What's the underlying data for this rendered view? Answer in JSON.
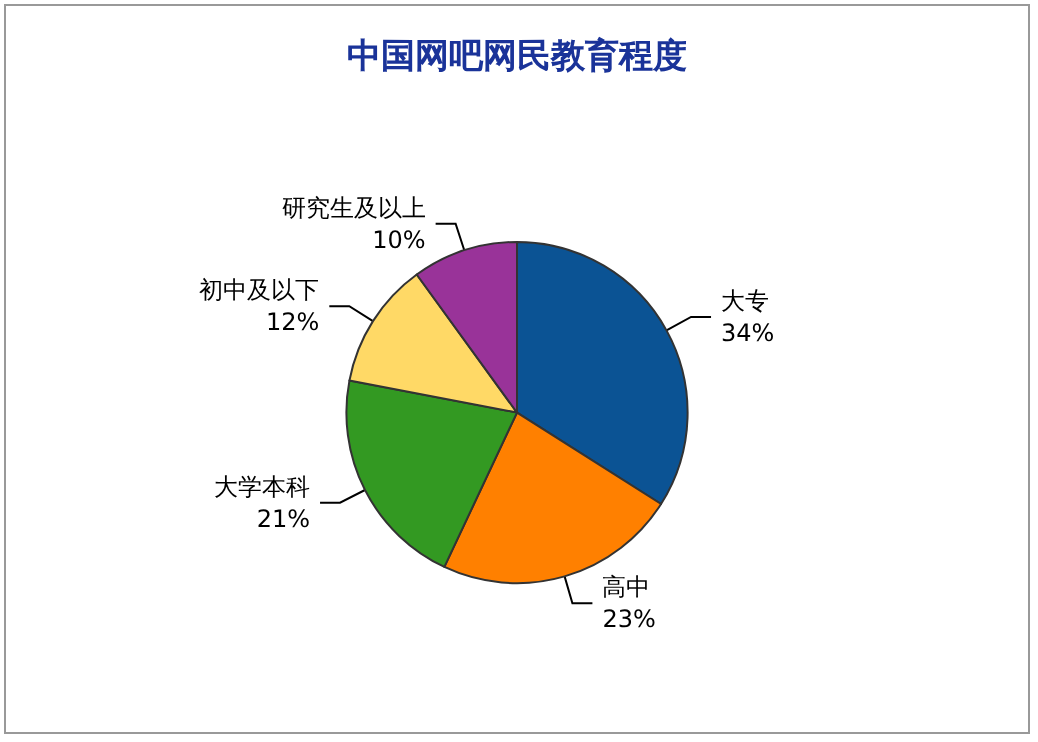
{
  "chart_data": {
    "type": "pie",
    "title": "中国网吧网民教育程度",
    "categories": [
      "大专",
      "高中",
      "大学本科",
      "初中及以下",
      "研究生及以上"
    ],
    "values": [
      34,
      23,
      21,
      12,
      10
    ],
    "value_labels": [
      "34%",
      "23%",
      "21%",
      "12%",
      "10%"
    ],
    "colors": [
      "#0b5394",
      "#ff8000",
      "#339922",
      "#ffd966",
      "#993399"
    ],
    "legend": false
  }
}
